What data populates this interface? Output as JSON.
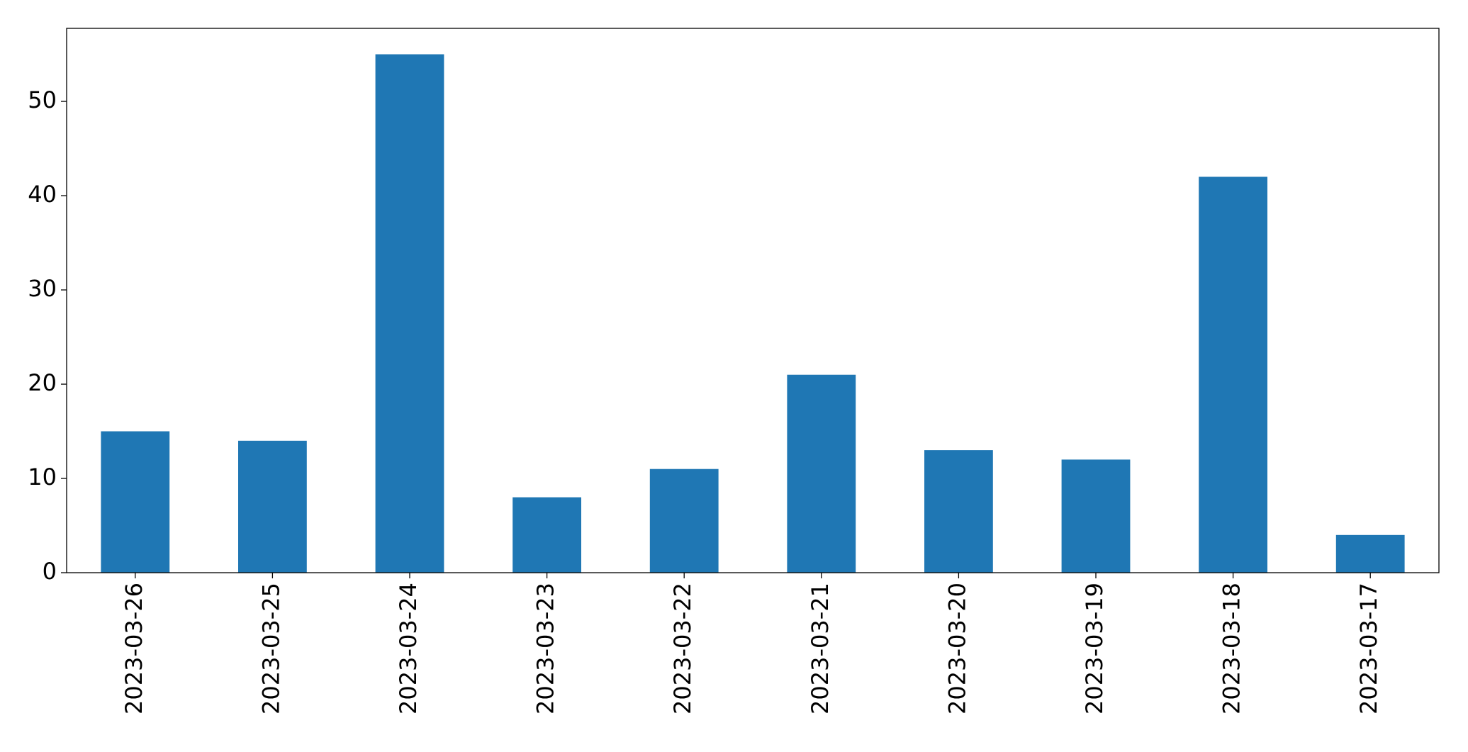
{
  "chart_data": {
    "type": "bar",
    "categories": [
      "2023-03-26",
      "2023-03-25",
      "2023-03-24",
      "2023-03-23",
      "2023-03-22",
      "2023-03-21",
      "2023-03-20",
      "2023-03-19",
      "2023-03-18",
      "2023-03-17"
    ],
    "values": [
      15,
      14,
      55,
      8,
      11,
      21,
      13,
      12,
      42,
      4
    ],
    "color": "#1f77b4",
    "ylim": [
      0,
      57.75
    ],
    "yticks": [
      0,
      10,
      20,
      30,
      40,
      50
    ],
    "grid": false
  }
}
